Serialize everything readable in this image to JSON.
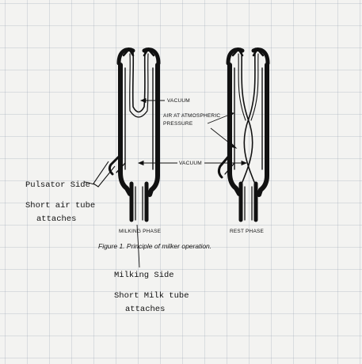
{
  "labels": {
    "vacuum_top": "VACUUM",
    "air_line1": "AIR AT ATMOSPHERIC",
    "air_line2": "PRESSURE",
    "vacuum_mid": "VACUUM",
    "pulsator_side": "Pulsator Side",
    "short_air_line1": "Short air tube",
    "short_air_line2": "attaches",
    "milking_phase": "MILKING PHASE",
    "rest_phase": "REST PHASE",
    "figure_caption": "Figure 1. Principle of milker operation.",
    "milking_side": "Milking Side",
    "short_milk_line1": "Short Milk tube",
    "short_milk_line2": "attaches"
  }
}
